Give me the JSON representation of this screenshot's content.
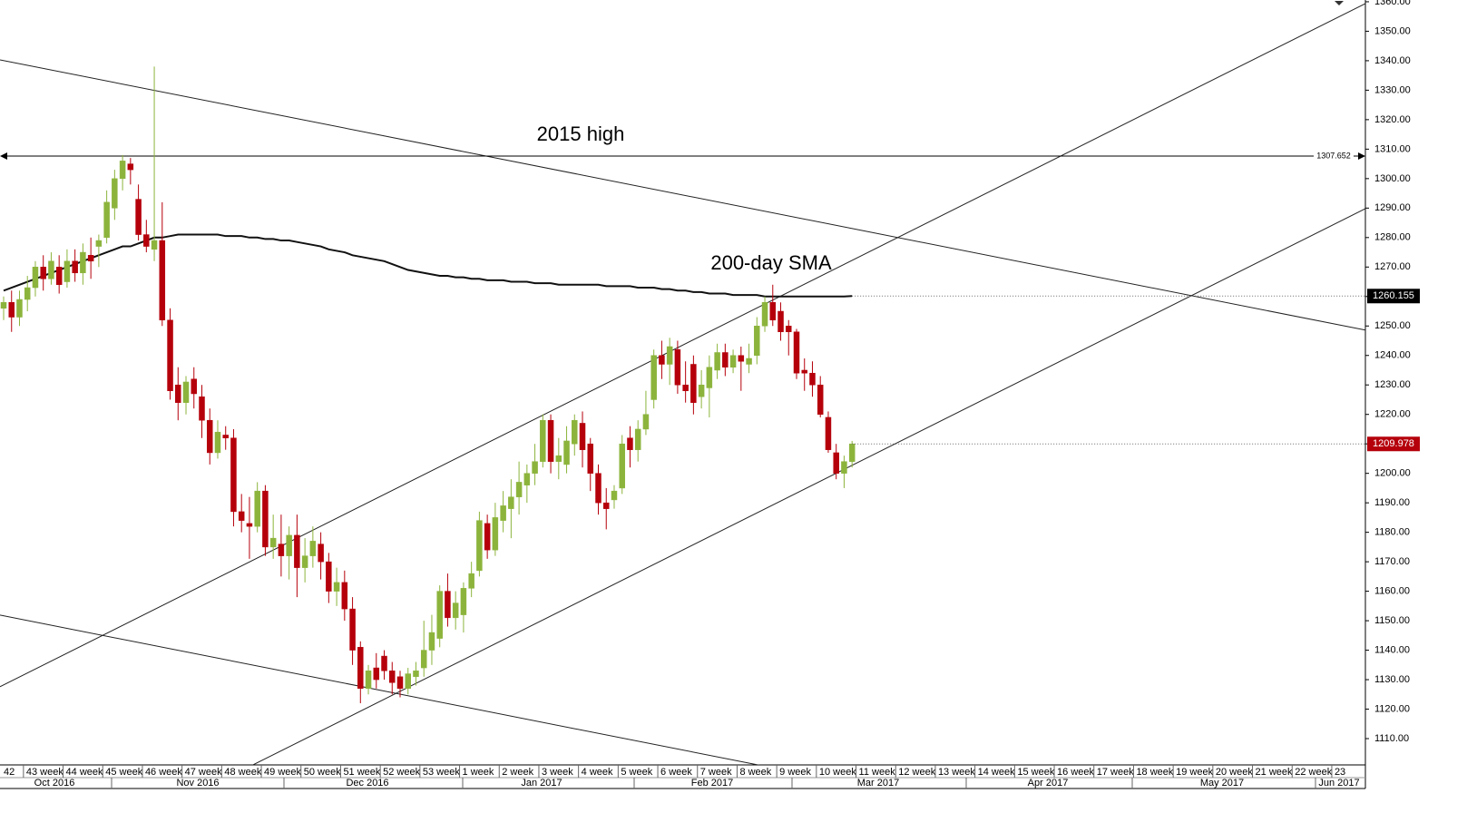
{
  "chart_data": {
    "type": "candlestick",
    "annotations": [
      "2015 high",
      "200-day SMA"
    ],
    "weeks": [
      "42",
      "43 week",
      "44 week",
      "45 week",
      "46 week",
      "47 week",
      "48 week",
      "49 week",
      "50 week",
      "51 week",
      "52 week",
      "53 week",
      "1 week",
      "2 week",
      "3 week",
      "4 week",
      "5 week",
      "6 week",
      "7 week",
      "8 week",
      "9 week",
      "10 week",
      "11 week",
      "12 week",
      "13 week",
      "14 week",
      "15 week",
      "16 week",
      "17 week",
      "18 week",
      "19 week",
      "20 week",
      "21 week",
      "22 week",
      "23"
    ],
    "months": [
      "Oct 2016",
      "Nov 2016",
      "Dec 2016",
      "Jan 2017",
      "Feb 2017",
      "Mar 2017",
      "Apr 2017",
      "May 2017",
      "Jun 2017"
    ],
    "ohlc": [
      [
        1256,
        1260,
        1252,
        1258
      ],
      [
        1258,
        1262,
        1248,
        1253
      ],
      [
        1253,
        1262,
        1250,
        1259
      ],
      [
        1259,
        1267,
        1255,
        1263
      ],
      [
        1263,
        1272,
        1260,
        1270
      ],
      [
        1270,
        1274,
        1262,
        1266
      ],
      [
        1266,
        1275,
        1264,
        1272
      ],
      [
        1270,
        1274,
        1261,
        1264
      ],
      [
        1265,
        1276,
        1263,
        1272
      ],
      [
        1272,
        1276,
        1265,
        1268
      ],
      [
        1268,
        1278,
        1264,
        1275
      ],
      [
        1274,
        1280,
        1266,
        1272
      ],
      [
        1277,
        1281,
        1270,
        1279
      ],
      [
        1280,
        1296,
        1278,
        1292
      ],
      [
        1290,
        1303,
        1286,
        1300
      ],
      [
        1300,
        1308,
        1296,
        1306
      ],
      [
        1305,
        1307,
        1298,
        1303
      ],
      [
        1293,
        1298,
        1279,
        1281
      ],
      [
        1281,
        1286,
        1275,
        1277
      ],
      [
        1276,
        1338,
        1272,
        1279
      ],
      [
        1279,
        1292,
        1250,
        1252
      ],
      [
        1252,
        1256,
        1225,
        1228
      ],
      [
        1230,
        1236,
        1218,
        1224
      ],
      [
        1224,
        1233,
        1220,
        1231
      ],
      [
        1232,
        1236,
        1222,
        1227
      ],
      [
        1226,
        1230,
        1212,
        1218
      ],
      [
        1218,
        1222,
        1203,
        1207
      ],
      [
        1207,
        1218,
        1205,
        1214
      ],
      [
        1213,
        1216,
        1208,
        1212
      ],
      [
        1212,
        1215,
        1182,
        1187
      ],
      [
        1187,
        1193,
        1180,
        1184
      ],
      [
        1183,
        1192,
        1171,
        1182
      ],
      [
        1182,
        1197,
        1180,
        1194
      ],
      [
        1194,
        1196,
        1172,
        1175
      ],
      [
        1175,
        1186,
        1171,
        1178
      ],
      [
        1176,
        1186,
        1165,
        1172
      ],
      [
        1172,
        1182,
        1164,
        1179
      ],
      [
        1179,
        1186,
        1158,
        1168
      ],
      [
        1168,
        1178,
        1163,
        1172
      ],
      [
        1172,
        1182,
        1168,
        1177
      ],
      [
        1176,
        1180,
        1164,
        1170
      ],
      [
        1170,
        1173,
        1156,
        1160
      ],
      [
        1160,
        1168,
        1155,
        1163
      ],
      [
        1163,
        1167,
        1150,
        1154
      ],
      [
        1154,
        1158,
        1135,
        1140
      ],
      [
        1141,
        1143,
        1122,
        1127
      ],
      [
        1127,
        1135,
        1125,
        1133
      ],
      [
        1134,
        1139,
        1127,
        1130
      ],
      [
        1138,
        1140,
        1130,
        1133
      ],
      [
        1133,
        1136,
        1125,
        1129
      ],
      [
        1131,
        1133,
        1124,
        1127
      ],
      [
        1127,
        1134,
        1125,
        1132
      ],
      [
        1131,
        1136,
        1128,
        1133
      ],
      [
        1134,
        1150,
        1131,
        1140
      ],
      [
        1140,
        1152,
        1135,
        1146
      ],
      [
        1144,
        1162,
        1141,
        1160
      ],
      [
        1160,
        1166,
        1148,
        1151
      ],
      [
        1151,
        1160,
        1147,
        1156
      ],
      [
        1152,
        1163,
        1146,
        1161
      ],
      [
        1161,
        1170,
        1158,
        1166
      ],
      [
        1167,
        1187,
        1165,
        1184
      ],
      [
        1183,
        1186,
        1171,
        1174
      ],
      [
        1174,
        1190,
        1172,
        1185
      ],
      [
        1184,
        1194,
        1180,
        1189
      ],
      [
        1188,
        1198,
        1178,
        1192
      ],
      [
        1192,
        1204,
        1186,
        1197
      ],
      [
        1196,
        1203,
        1190,
        1200
      ],
      [
        1200,
        1210,
        1196,
        1204
      ],
      [
        1204,
        1220,
        1202,
        1218
      ],
      [
        1218,
        1220,
        1200,
        1204
      ],
      [
        1204,
        1212,
        1198,
        1206
      ],
      [
        1203,
        1216,
        1200,
        1211
      ],
      [
        1210,
        1220,
        1206,
        1218
      ],
      [
        1217,
        1221,
        1202,
        1208
      ],
      [
        1210,
        1212,
        1194,
        1200
      ],
      [
        1200,
        1203,
        1186,
        1190
      ],
      [
        1190,
        1195,
        1181,
        1188
      ],
      [
        1191,
        1196,
        1188,
        1194
      ],
      [
        1195,
        1213,
        1193,
        1210
      ],
      [
        1212,
        1216,
        1202,
        1208
      ],
      [
        1208,
        1218,
        1204,
        1215
      ],
      [
        1215,
        1228,
        1213,
        1220
      ],
      [
        1225,
        1242,
        1222,
        1240
      ],
      [
        1240,
        1245,
        1232,
        1237
      ],
      [
        1237,
        1246,
        1230,
        1243
      ],
      [
        1242,
        1245,
        1227,
        1230
      ],
      [
        1230,
        1238,
        1224,
        1228
      ],
      [
        1237,
        1240,
        1220,
        1224
      ],
      [
        1226,
        1235,
        1222,
        1230
      ],
      [
        1229,
        1240,
        1219,
        1236
      ],
      [
        1235,
        1244,
        1232,
        1241
      ],
      [
        1241,
        1244,
        1233,
        1236
      ],
      [
        1236,
        1242,
        1234,
        1240
      ],
      [
        1240,
        1243,
        1228,
        1238
      ],
      [
        1237,
        1244,
        1234,
        1239
      ],
      [
        1240,
        1253,
        1237,
        1250
      ],
      [
        1250,
        1260,
        1248,
        1258
      ],
      [
        1258,
        1264,
        1250,
        1252
      ],
      [
        1255,
        1258,
        1245,
        1248
      ],
      [
        1250,
        1252,
        1240,
        1248
      ],
      [
        1248,
        1249,
        1232,
        1234
      ],
      [
        1235,
        1239,
        1228,
        1234
      ],
      [
        1234,
        1238,
        1226,
        1230
      ],
      [
        1230,
        1233,
        1219,
        1220
      ],
      [
        1219,
        1221,
        1207,
        1208
      ],
      [
        1207,
        1210,
        1198,
        1200
      ],
      [
        1200,
        1206,
        1195,
        1204
      ],
      [
        1204,
        1211,
        1202,
        1210
      ]
    ],
    "sma": {
      "values": [
        1262,
        1263,
        1264,
        1265,
        1266,
        1267,
        1268,
        1269,
        1270,
        1271,
        1272,
        1273,
        1274,
        1275,
        1276,
        1277,
        1277,
        1278,
        1279,
        1280,
        1280,
        1280.5,
        1281,
        1281,
        1281,
        1281,
        1281,
        1281,
        1280.5,
        1280.5,
        1280.5,
        1280,
        1280,
        1279.5,
        1279.5,
        1279,
        1279,
        1278.5,
        1278,
        1277.5,
        1277,
        1276,
        1275.5,
        1275,
        1274,
        1273.5,
        1273,
        1272.5,
        1272,
        1271,
        1270,
        1269,
        1268.5,
        1268,
        1267.5,
        1267,
        1267,
        1266.5,
        1266.5,
        1266,
        1266,
        1265.5,
        1265.5,
        1265.5,
        1265,
        1265,
        1265,
        1264.5,
        1264.5,
        1264.5,
        1264,
        1264,
        1264,
        1264,
        1264,
        1264,
        1263.5,
        1263.5,
        1263.5,
        1263.5,
        1263,
        1263,
        1263,
        1262.5,
        1262.5,
        1262,
        1262,
        1261.5,
        1261.5,
        1261,
        1261,
        1261,
        1260.5,
        1260.5,
        1260.5,
        1260.5,
        1260,
        1260,
        1260,
        1260,
        1260,
        1260,
        1260,
        1260,
        1260,
        1260,
        1260,
        1260.155
      ],
      "color": "#111111"
    },
    "trend_lines": [
      [
        1340.3,
        1248.6
      ],
      [
        1127.6,
        1359.4
      ],
      [
        1100.5,
        1289.8
      ],
      [
        1151.9,
        1100.5
      ]
    ],
    "level": 1307.652,
    "price_lines": [
      1260.155,
      1209.978
    ],
    "ylim": [
      1102,
      1360.6
    ],
    "yticks": [
      {
        "value": 1110,
        "label": "1110.00"
      },
      {
        "value": 1120,
        "label": "1120.00"
      },
      {
        "value": 1130,
        "label": "1130.00"
      },
      {
        "value": 1140,
        "label": "1140.00"
      },
      {
        "value": 1150,
        "label": "1150.00"
      },
      {
        "value": 1160,
        "label": "1160.00"
      },
      {
        "value": 1170,
        "label": "1170.00"
      },
      {
        "value": 1180,
        "label": "1180.00"
      },
      {
        "value": 1190,
        "label": "1190.00"
      },
      {
        "value": 1200,
        "label": "1200.00"
      },
      {
        "value": 1210,
        "label": "1210.00"
      },
      {
        "value": 1220,
        "label": "1220.00"
      },
      {
        "value": 1230,
        "label": "1230.00"
      },
      {
        "value": 1240,
        "label": "1240.00"
      },
      {
        "value": 1250,
        "label": "1250.00"
      },
      {
        "value": 1260,
        "label": "1260.00"
      },
      {
        "value": 1270,
        "label": "1270.00"
      },
      {
        "value": 1280,
        "label": "1280.00"
      },
      {
        "value": 1290,
        "label": "1290.00"
      },
      {
        "value": 1300,
        "label": "1300.00"
      },
      {
        "value": 1310,
        "label": "1310.00"
      },
      {
        "value": 1320,
        "label": "1320.00"
      },
      {
        "value": 1330,
        "label": "1330.00"
      },
      {
        "value": 1340,
        "label": "1340.00"
      },
      {
        "value": 1350,
        "label": "1350.00"
      },
      {
        "value": 1360,
        "label": "1360.00"
      }
    ],
    "colors": {
      "up": "#8cb43c",
      "down": "#b5000b"
    }
  }
}
